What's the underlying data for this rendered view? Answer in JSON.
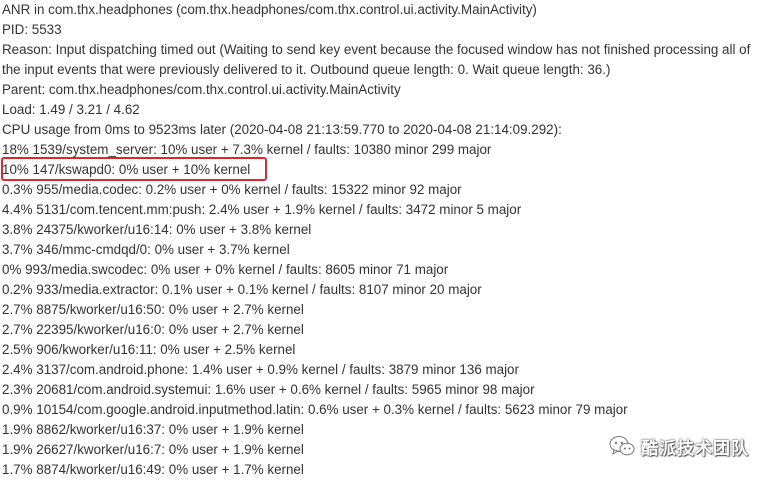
{
  "log": {
    "lines": [
      "ANR in com.thx.headphones (com.thx.headphones/com.thx.control.ui.activity.MainActivity)",
      "PID: 5533",
      "Reason: Input dispatching timed out (Waiting to send key event because the focused window has not finished processing all of the input events that were previously delivered to it. Outbound queue length: 0. Wait queue length: 36.)",
      "Parent: com.thx.headphones/com.thx.control.ui.activity.MainActivity",
      "Load: 1.49 / 3.21 / 4.62",
      "CPU usage from 0ms to 9523ms later (2020-04-08 21:13:59.770 to 2020-04-08 21:14:09.292):",
      "18% 1539/system_server: 10% user + 7.3% kernel / faults: 10380 minor 299 major",
      "10% 147/kswapd0: 0% user + 10% kernel",
      "0.3% 955/media.codec: 0.2% user + 0% kernel / faults: 15322 minor 92 major",
      "4.4% 5131/com.tencent.mm:push: 2.4% user + 1.9% kernel / faults: 3472 minor 5 major",
      "3.8% 24375/kworker/u16:14: 0% user + 3.8% kernel",
      "3.7% 346/mmc-cmdqd/0: 0% user + 3.7% kernel",
      "0% 993/media.swcodec: 0% user + 0% kernel / faults: 8605 minor 71 major",
      "0.2% 933/media.extractor: 0.1% user + 0.1% kernel / faults: 8107 minor 20 major",
      "2.7% 8875/kworker/u16:50: 0% user + 2.7% kernel",
      "2.7% 22395/kworker/u16:0: 0% user + 2.7% kernel",
      "2.5% 906/kworker/u16:11: 0% user + 2.5% kernel",
      "2.4% 3137/com.android.phone: 1.4% user + 0.9% kernel / faults: 3879 minor 136 major",
      "2.3% 20681/com.android.systemui: 1.6% user + 0.6% kernel / faults: 5965 minor 98 major",
      "0.9% 10154/com.google.android.inputmethod.latin: 0.6% user + 0.3% kernel / faults: 5623 minor 79 major",
      "1.9% 8862/kworker/u16:37: 0% user + 1.9% kernel",
      "1.9% 26627/kworker/u16:7: 0% user + 1.9% kernel",
      "1.7% 8874/kworker/u16:49: 0% user + 1.7% kernel"
    ]
  },
  "highlight_color": "#e0262b",
  "watermark": {
    "text": "酷派技术团队",
    "icon": "wechat-icon"
  }
}
